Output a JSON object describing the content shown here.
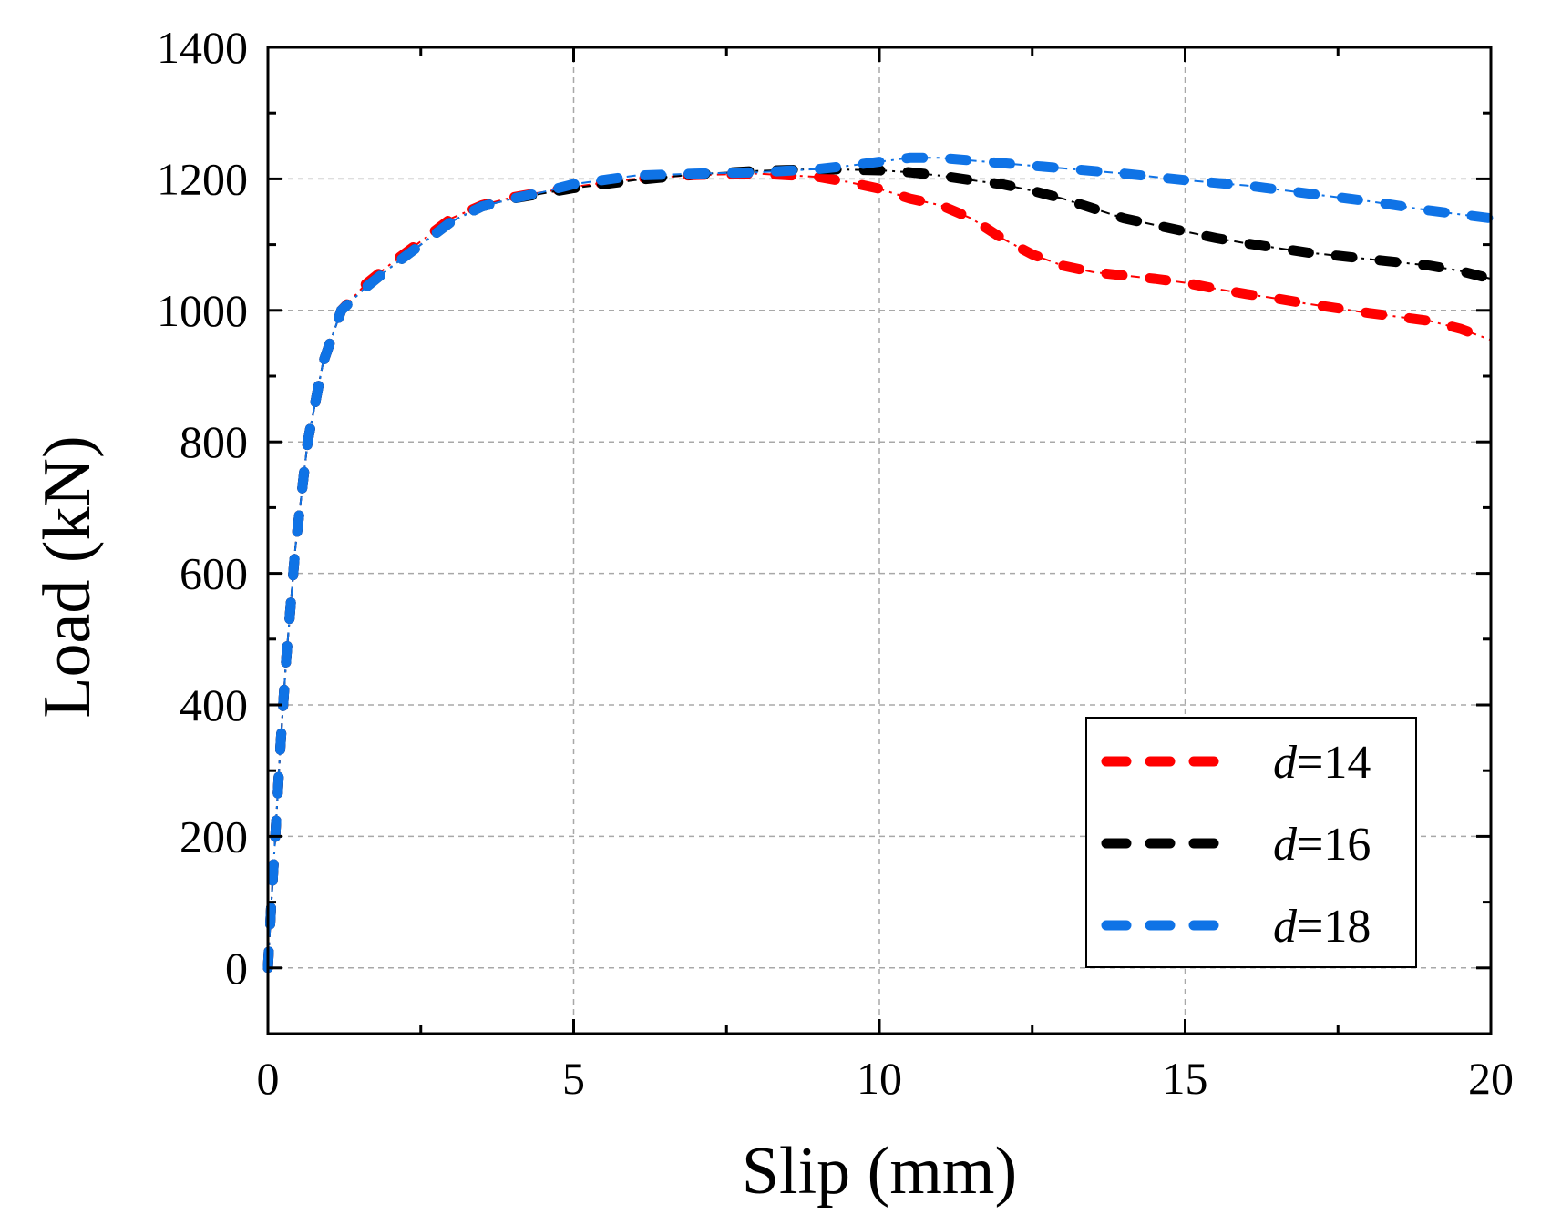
{
  "chart_data": {
    "type": "line",
    "title": "",
    "xlabel": "Slip (mm)",
    "ylabel": "Load (kN)",
    "xlim": [
      0,
      20
    ],
    "ylim": [
      -100,
      1400
    ],
    "xticks": [
      0,
      5,
      10,
      15,
      20
    ],
    "yticks": [
      0,
      200,
      400,
      600,
      800,
      1000,
      1200,
      1400
    ],
    "grid": true,
    "legend_position": "bottom-right",
    "series": [
      {
        "name": "d=14",
        "legend_italic": "d",
        "legend_rest": "=14",
        "color": "#ff0000",
        "x": [
          0,
          0.05,
          0.12,
          0.2,
          0.3,
          0.45,
          0.65,
          0.9,
          1.2,
          1.6,
          2.0,
          2.5,
          3.0,
          3.5,
          4.0,
          4.5,
          5.0,
          6.0,
          7.0,
          8.0,
          9.0,
          9.5,
          10.0,
          10.5,
          11.0,
          11.5,
          12.0,
          12.5,
          13.0,
          13.5,
          14.0,
          14.5,
          15.0,
          15.5,
          16.0,
          16.5,
          17.0,
          17.5,
          18.0,
          18.5,
          19.0,
          19.5,
          20.0
        ],
        "y": [
          0,
          90,
          200,
          330,
          470,
          640,
          800,
          920,
          1000,
          1040,
          1070,
          1105,
          1140,
          1160,
          1172,
          1180,
          1188,
          1200,
          1206,
          1208,
          1203,
          1195,
          1185,
          1170,
          1160,
          1140,
          1110,
          1085,
          1068,
          1058,
          1053,
          1048,
          1042,
          1033,
          1025,
          1018,
          1010,
          1003,
          996,
          990,
          984,
          972,
          955
        ]
      },
      {
        "name": "d=16",
        "legend_italic": "d",
        "legend_rest": "=16",
        "color": "#000000",
        "x": [
          0,
          0.05,
          0.12,
          0.2,
          0.3,
          0.45,
          0.65,
          0.9,
          1.2,
          1.6,
          2.0,
          2.5,
          3.0,
          3.5,
          4.0,
          4.5,
          5.0,
          6.0,
          7.0,
          8.0,
          9.0,
          10.0,
          10.5,
          11.0,
          11.5,
          12.0,
          12.5,
          13.0,
          13.5,
          14.0,
          14.5,
          15.0,
          15.5,
          16.0,
          16.5,
          17.0,
          17.5,
          18.0,
          18.5,
          19.0,
          19.5,
          20.0
        ],
        "y": [
          0,
          90,
          200,
          330,
          470,
          640,
          800,
          920,
          1000,
          1035,
          1065,
          1100,
          1135,
          1158,
          1170,
          1178,
          1186,
          1198,
          1207,
          1212,
          1215,
          1213,
          1210,
          1205,
          1198,
          1192,
          1182,
          1170,
          1155,
          1140,
          1130,
          1120,
          1110,
          1102,
          1095,
          1088,
          1083,
          1078,
          1073,
          1068,
          1060,
          1048
        ]
      },
      {
        "name": "d=18",
        "legend_italic": "d",
        "legend_rest": "=18",
        "color": "#0f73e6",
        "x": [
          0,
          0.05,
          0.12,
          0.2,
          0.3,
          0.45,
          0.65,
          0.9,
          1.2,
          1.6,
          2.0,
          2.5,
          3.0,
          3.5,
          4.0,
          4.5,
          5.0,
          6.0,
          7.0,
          8.0,
          9.0,
          9.5,
          10.0,
          10.5,
          11.0,
          11.5,
          12.0,
          13.0,
          14.0,
          15.0,
          16.0,
          17.0,
          18.0,
          19.0,
          20.0
        ],
        "y": [
          0,
          90,
          200,
          330,
          470,
          640,
          800,
          920,
          1000,
          1035,
          1065,
          1100,
          1135,
          1158,
          1170,
          1180,
          1192,
          1205,
          1208,
          1210,
          1215,
          1220,
          1226,
          1232,
          1232,
          1228,
          1224,
          1216,
          1208,
          1198,
          1190,
          1178,
          1166,
          1152,
          1140
        ]
      }
    ]
  }
}
